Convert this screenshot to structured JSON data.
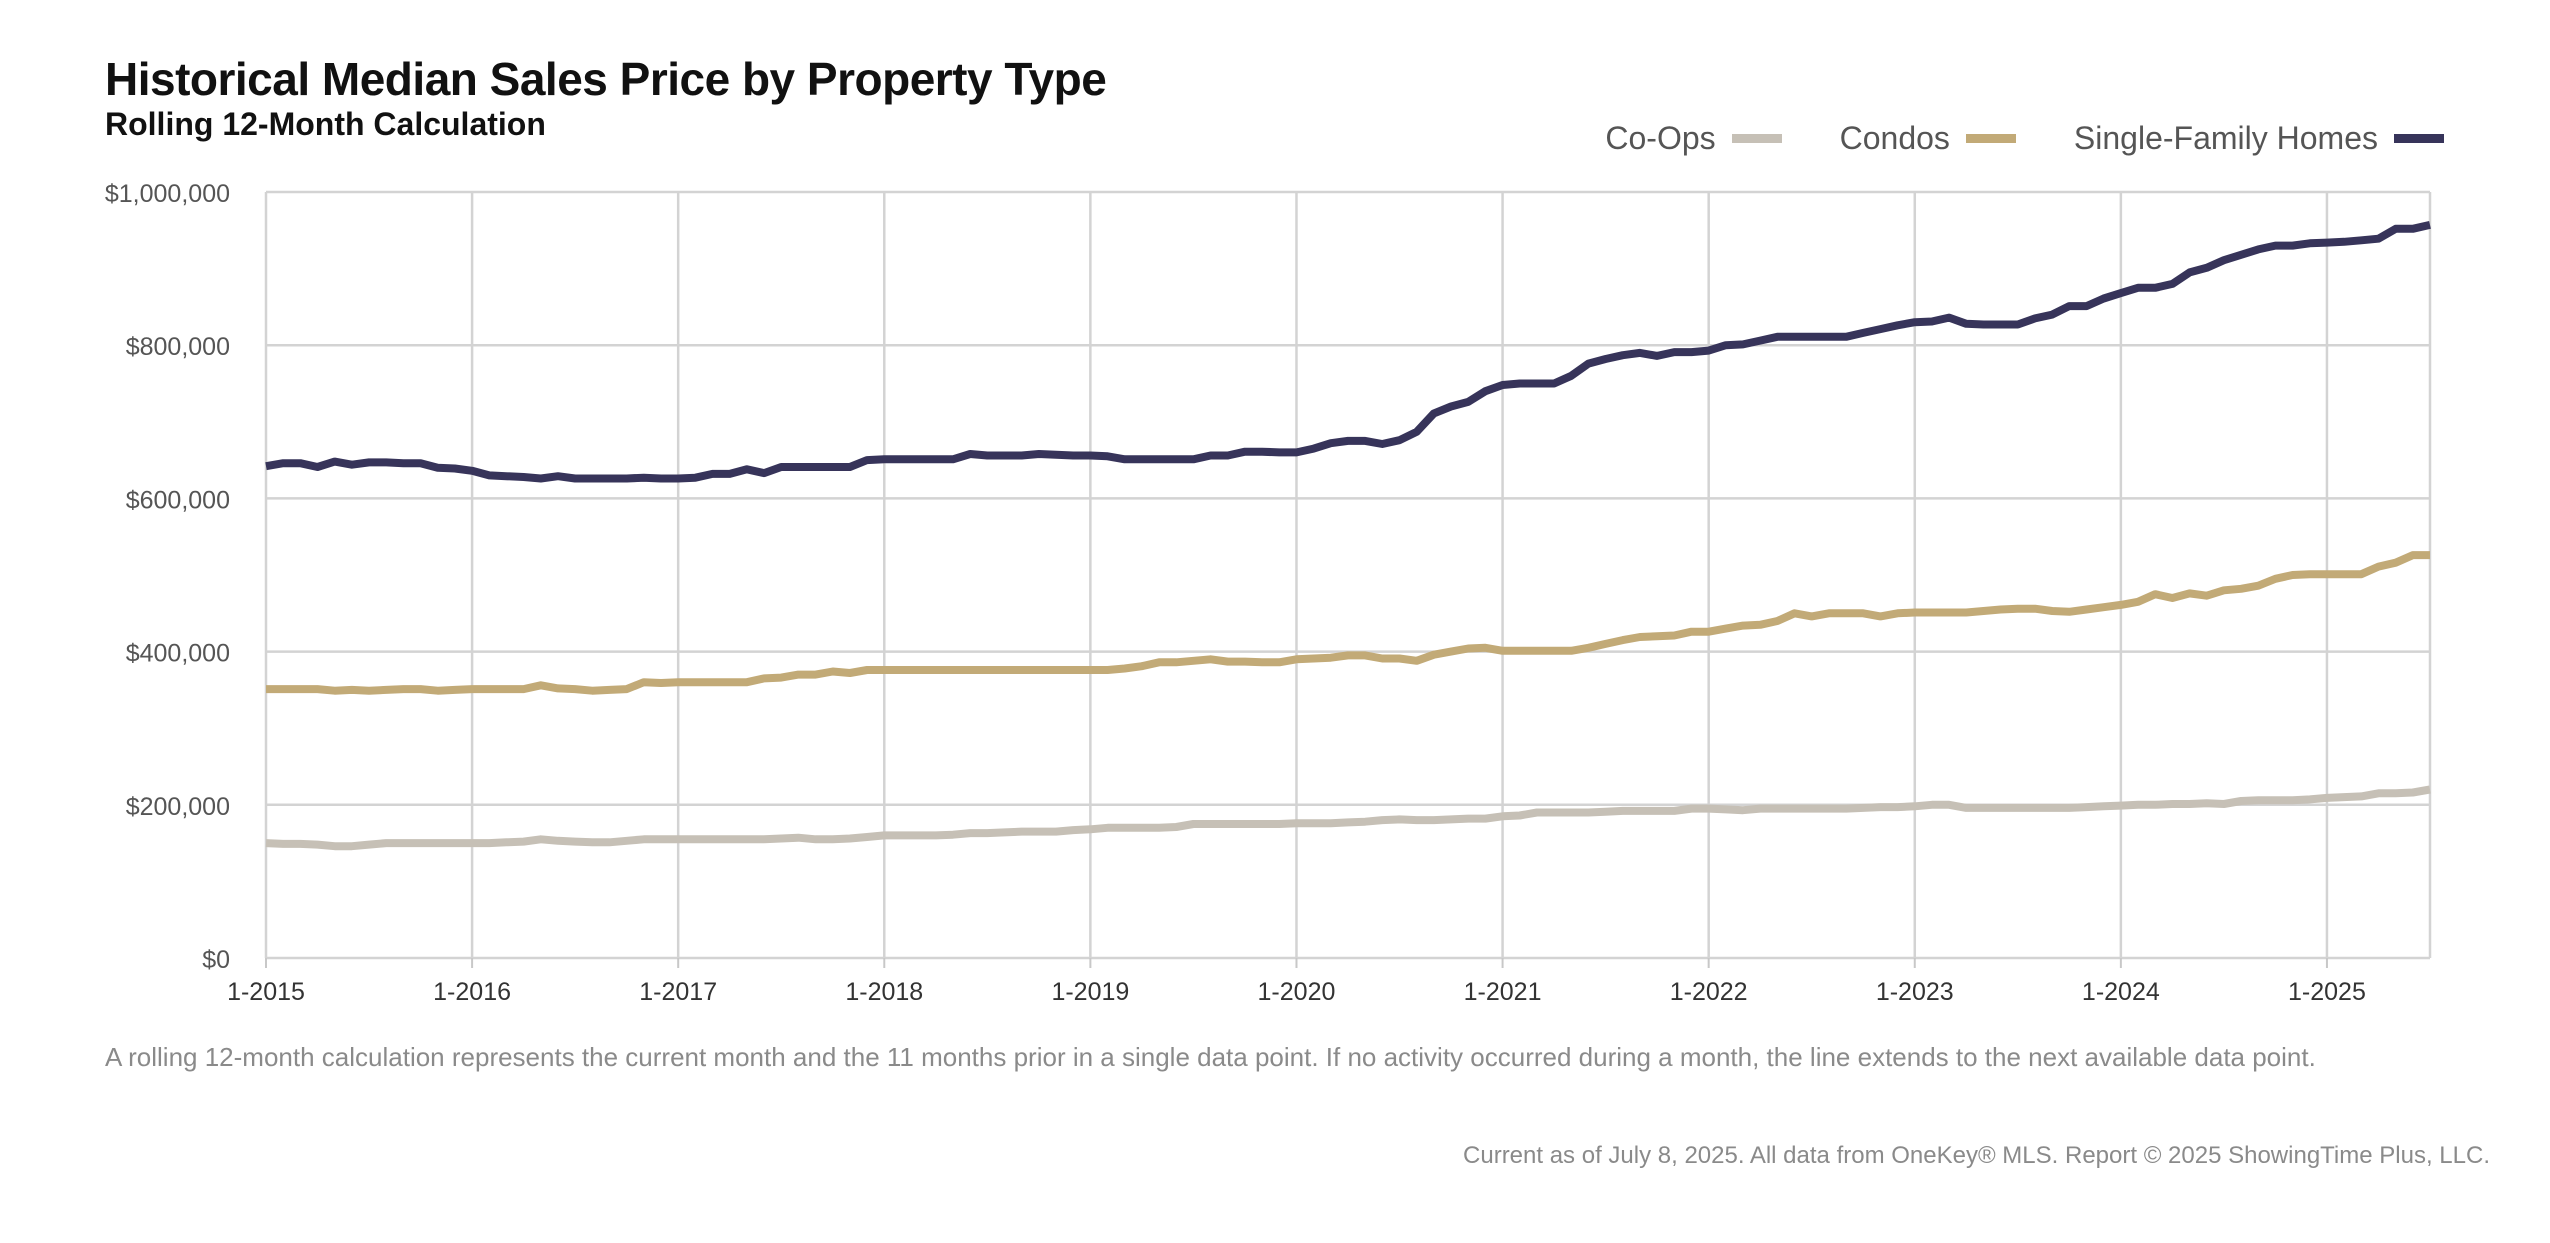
{
  "header": {
    "title": "Historical Median Sales Price by Property Type",
    "subtitle": "Rolling 12-Month Calculation"
  },
  "legend": [
    {
      "label": "Co-Ops",
      "color": "#c6c0b6"
    },
    {
      "label": "Condos",
      "color": "#c2aa77"
    },
    {
      "label": "Single-Family Homes",
      "color": "#37345a"
    }
  ],
  "chart_data": {
    "type": "line",
    "title": "Historical Median Sales Price by Property Type",
    "subtitle": "Rolling 12-Month Calculation",
    "x_start": "1-2015",
    "x_end": "6-2025",
    "x_tick_labels": [
      "1-2015",
      "1-2016",
      "1-2017",
      "1-2018",
      "1-2019",
      "1-2020",
      "1-2021",
      "1-2022",
      "1-2023",
      "1-2024",
      "1-2025"
    ],
    "y_tick_labels": [
      "$0",
      "$200,000",
      "$400,000",
      "$600,000",
      "$800,000",
      "$1,000,000"
    ],
    "ylim": [
      0,
      1000000
    ],
    "grid": true,
    "legend_position": "top-right",
    "series": [
      {
        "name": "Single-Family Homes",
        "color": "#37345a",
        "values": [
          642000,
          646000,
          646000,
          641000,
          648000,
          644000,
          647000,
          647000,
          646000,
          646000,
          640000,
          639000,
          636000,
          630000,
          629000,
          628000,
          626000,
          629000,
          626000,
          626000,
          626000,
          626000,
          627000,
          626000,
          626000,
          627000,
          632000,
          632000,
          638000,
          633000,
          641000,
          641000,
          641000,
          641000,
          641000,
          650000,
          651000,
          651000,
          651000,
          651000,
          651000,
          658000,
          656000,
          656000,
          656000,
          658000,
          657000,
          656000,
          656000,
          655000,
          651000,
          651000,
          651000,
          651000,
          651000,
          656000,
          656000,
          661000,
          661000,
          660000,
          660000,
          665000,
          672000,
          675000,
          675000,
          671000,
          676000,
          687000,
          711000,
          720000,
          726000,
          740000,
          748000,
          750000,
          750000,
          750000,
          760000,
          776000,
          782000,
          787000,
          790000,
          786000,
          791000,
          791000,
          793000,
          800000,
          801000,
          806000,
          811000,
          811000,
          811000,
          811000,
          811000,
          816000,
          821000,
          826000,
          830000,
          831000,
          836000,
          828000,
          827000,
          827000,
          827000,
          835000,
          840000,
          851000,
          851000,
          861000,
          868000,
          875000,
          875000,
          880000,
          895000,
          901000,
          911000,
          918000,
          925000,
          930000,
          930000,
          933000,
          934000,
          935000,
          937000,
          939000,
          952000,
          952000,
          957000
        ]
      },
      {
        "name": "Condos",
        "color": "#c2aa77",
        "values": [
          351000,
          351000,
          351000,
          351000,
          349000,
          350000,
          349000,
          350000,
          351000,
          351000,
          349000,
          350000,
          351000,
          351000,
          351000,
          351000,
          356000,
          352000,
          351000,
          349000,
          350000,
          351000,
          360000,
          359000,
          360000,
          360000,
          360000,
          360000,
          360000,
          365000,
          366000,
          370000,
          370000,
          374000,
          372000,
          376000,
          376000,
          376000,
          376000,
          376000,
          376000,
          376000,
          376000,
          376000,
          376000,
          376000,
          376000,
          376000,
          376000,
          376000,
          378000,
          381000,
          386000,
          386000,
          388000,
          390000,
          387000,
          387000,
          386000,
          386000,
          390000,
          391000,
          392000,
          395000,
          395000,
          391000,
          391000,
          388000,
          396000,
          400000,
          404000,
          405000,
          401000,
          401000,
          401000,
          401000,
          401000,
          405000,
          410000,
          415000,
          419000,
          420000,
          421000,
          426000,
          426000,
          430000,
          434000,
          435000,
          440000,
          450000,
          446000,
          450000,
          450000,
          450000,
          446000,
          450000,
          451000,
          451000,
          451000,
          451000,
          453000,
          455000,
          456000,
          456000,
          453000,
          452000,
          455000,
          458000,
          461000,
          465000,
          475000,
          470000,
          476000,
          473000,
          480000,
          482000,
          486000,
          495000,
          500000,
          501000,
          501000,
          501000,
          501000,
          511000,
          516000,
          526000,
          526000
        ]
      },
      {
        "name": "Co-Ops",
        "color": "#c6c0b6",
        "values": [
          150000,
          149000,
          149000,
          148000,
          146000,
          146000,
          148000,
          150000,
          150000,
          150000,
          150000,
          150000,
          150000,
          150000,
          151000,
          152000,
          155000,
          153000,
          152000,
          151000,
          151000,
          153000,
          155000,
          155000,
          155000,
          155000,
          155000,
          155000,
          155000,
          155000,
          156000,
          157000,
          155000,
          155000,
          156000,
          158000,
          160000,
          160000,
          160000,
          160000,
          161000,
          163000,
          163000,
          164000,
          165000,
          165000,
          165000,
          167000,
          168000,
          170000,
          170000,
          170000,
          170000,
          171000,
          175000,
          175000,
          175000,
          175000,
          175000,
          175000,
          176000,
          176000,
          176000,
          177000,
          178000,
          180000,
          181000,
          180000,
          180000,
          181000,
          182000,
          182000,
          185000,
          186000,
          190000,
          190000,
          190000,
          190000,
          191000,
          192000,
          192000,
          192000,
          192000,
          195000,
          195000,
          194000,
          193000,
          195000,
          195000,
          195000,
          195000,
          195000,
          195000,
          196000,
          197000,
          197000,
          198000,
          200000,
          200000,
          196000,
          196000,
          196000,
          196000,
          196000,
          196000,
          196000,
          197000,
          198000,
          199000,
          200000,
          200000,
          201000,
          201000,
          202000,
          201000,
          205000,
          206000,
          206000,
          206000,
          207000,
          209000,
          210000,
          211000,
          215000,
          215000,
          216000,
          220000
        ]
      }
    ]
  },
  "footnote": "A rolling 12-month calculation represents the current month and the 11 months prior in a single data point. If no activity occurred during a month, the line extends to the next available data point.",
  "source": "Current as of July 8, 2025. All data from OneKey® MLS. Report © 2025 ShowingTime Plus, LLC."
}
